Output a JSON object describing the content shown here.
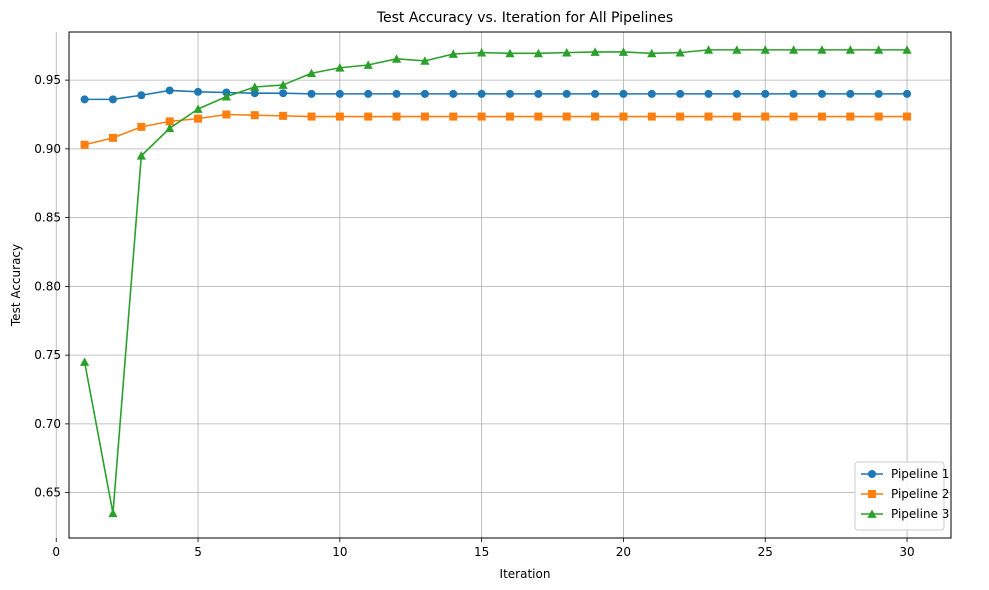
{
  "chart_data": {
    "type": "line",
    "title": "Test Accuracy vs. Iteration for All Pipelines",
    "xlabel": "Iteration",
    "ylabel": "Test Accuracy",
    "x": [
      1,
      2,
      3,
      4,
      5,
      6,
      7,
      8,
      9,
      10,
      11,
      12,
      13,
      14,
      15,
      16,
      17,
      18,
      19,
      20,
      21,
      22,
      23,
      24,
      25,
      26,
      27,
      28,
      29,
      30
    ],
    "xlim": [
      0.45,
      31.55
    ],
    "ylim": [
      0.617,
      0.985
    ],
    "xticks": [
      0,
      5,
      10,
      15,
      20,
      25,
      30
    ],
    "xtick_labels": [
      "0",
      "5",
      "10",
      "15",
      "20",
      "25",
      "30"
    ],
    "yticks": [
      0.65,
      0.7,
      0.75,
      0.8,
      0.85,
      0.9,
      0.95
    ],
    "ytick_labels": [
      "0.65",
      "0.70",
      "0.75",
      "0.80",
      "0.85",
      "0.90",
      "0.95"
    ],
    "grid": true,
    "legend_position": "lower-right",
    "series": [
      {
        "name": "Pipeline 1",
        "color": "#1f77b4",
        "marker": "circle",
        "values": [
          0.936,
          0.936,
          0.939,
          0.9425,
          0.9415,
          0.941,
          0.9405,
          0.9405,
          0.94,
          0.94,
          0.94,
          0.94,
          0.94,
          0.94,
          0.94,
          0.94,
          0.94,
          0.94,
          0.94,
          0.94,
          0.94,
          0.94,
          0.94,
          0.94,
          0.94,
          0.94,
          0.94,
          0.94,
          0.94,
          0.94
        ]
      },
      {
        "name": "Pipeline 2",
        "color": "#ff7f0e",
        "marker": "square",
        "values": [
          0.903,
          0.908,
          0.916,
          0.92,
          0.922,
          0.925,
          0.9245,
          0.924,
          0.9235,
          0.9235,
          0.9235,
          0.9235,
          0.9235,
          0.9235,
          0.9235,
          0.9235,
          0.9235,
          0.9235,
          0.9235,
          0.9235,
          0.9235,
          0.9235,
          0.9235,
          0.9235,
          0.9235,
          0.9235,
          0.9235,
          0.9235,
          0.9235,
          0.9235
        ]
      },
      {
        "name": "Pipeline 3",
        "color": "#2ca02c",
        "marker": "triangle",
        "values": [
          0.745,
          0.635,
          0.895,
          0.915,
          0.929,
          0.938,
          0.945,
          0.9465,
          0.955,
          0.959,
          0.961,
          0.9655,
          0.964,
          0.969,
          0.97,
          0.9695,
          0.9695,
          0.97,
          0.9705,
          0.9705,
          0.9695,
          0.97,
          0.972,
          0.972,
          0.972,
          0.972,
          0.972,
          0.972,
          0.972,
          0.972
        ]
      }
    ]
  }
}
